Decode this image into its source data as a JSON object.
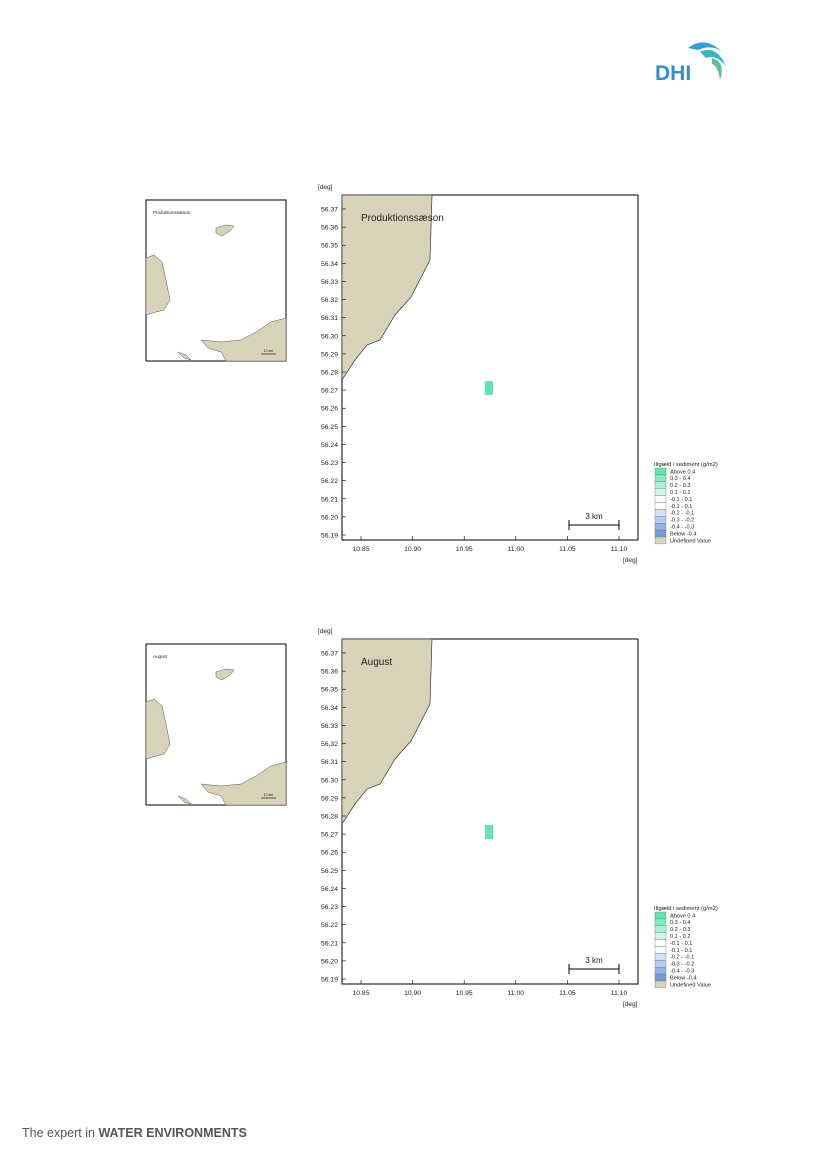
{
  "header": {
    "logo": "DHI"
  },
  "panels": [
    {
      "title": "Produktionssæson",
      "inset_label": "Produktionssæson",
      "inset_scale": "10 km",
      "y_unit": "[deg]",
      "x_unit": "[deg]",
      "yticks": [
        "56.37",
        "56.36",
        "56.35",
        "56.34",
        "56.33",
        "56.32",
        "56.31",
        "56.30",
        "56.29",
        "56.28",
        "56.27",
        "56.26",
        "56.25",
        "56.24",
        "56.23",
        "56.22",
        "56.21",
        "56.20",
        "56.19"
      ],
      "xticks": [
        "10.85",
        "10.90",
        "10.95",
        "11.00",
        "11.05",
        "11.10"
      ],
      "scale_bar": "3 km",
      "legend": {
        "title": "Iltgæld i sediment (g/m2)",
        "items": [
          "Above  0.4",
          "0.3 -  0.4",
          "0.2 -  0.3",
          "0.1 -  0.2",
          "-0.1 -  0.1",
          "-0.1 -  0.1",
          "-0.2 - -0.1",
          "-0.3 - -0.2",
          "-0.4 - -0.3",
          "Below -0.4",
          "Undefined Value"
        ]
      }
    },
    {
      "title": "August",
      "inset_label": "August",
      "inset_scale": "10 km",
      "y_unit": "[deg]",
      "x_unit": "[deg]",
      "yticks": [
        "56.37",
        "56.36",
        "56.35",
        "56.34",
        "56.33",
        "56.32",
        "56.31",
        "56.30",
        "56.29",
        "56.28",
        "56.27",
        "56.26",
        "56.25",
        "56.24",
        "56.23",
        "56.22",
        "56.21",
        "56.20",
        "56.19"
      ],
      "xticks": [
        "10.85",
        "10.90",
        "10.95",
        "11.00",
        "11.05",
        "11.10"
      ],
      "scale_bar": "3 km",
      "legend": {
        "title": "Iltgæld i sediment (g/m2)",
        "items": [
          "Above  0.4",
          "0.3 -  0.4",
          "0.2 -  0.3",
          "0.1 -  0.2",
          "-0.1 -  0.1",
          "-0.1 -  0.1",
          "-0.2 - -0.1",
          "-0.3 - -0.2",
          "-0.4 - -0.3",
          "Below -0.4",
          "Undefined Value"
        ]
      }
    }
  ],
  "footer": {
    "prefix": "The expert in",
    "emphasis": "WATER ENVIRONMENTS"
  }
}
